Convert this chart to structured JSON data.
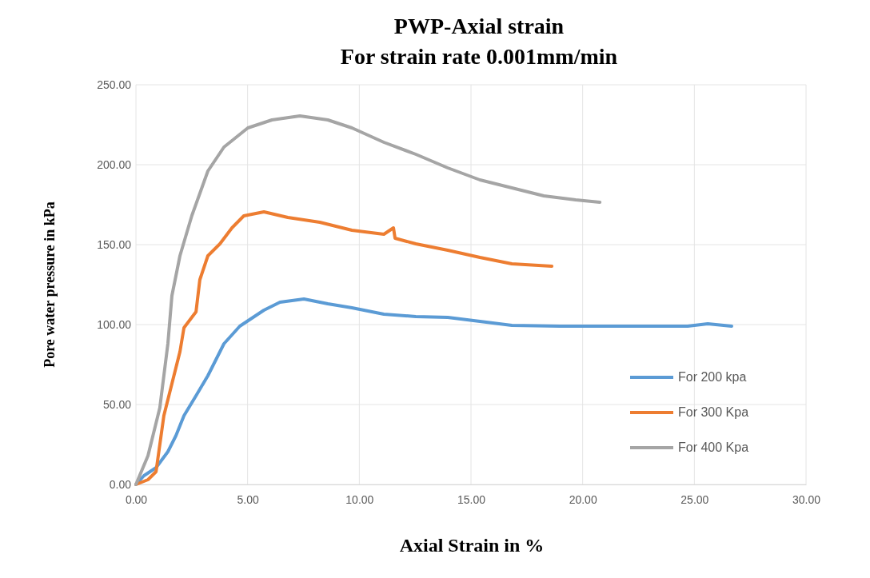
{
  "chart_data": {
    "type": "line",
    "title": "PWP-Axial strain",
    "subtitle": "For strain rate 0.001mm/min",
    "xlabel": "Axial Strain in %",
    "ylabel": "Pore water pressure in kPa",
    "xlim": [
      0,
      30
    ],
    "ylim": [
      0,
      250
    ],
    "xticks": [
      {
        "value": 0,
        "label": "0.00"
      },
      {
        "value": 5,
        "label": "5.00"
      },
      {
        "value": 10,
        "label": "10.00"
      },
      {
        "value": 15,
        "label": "15.00"
      },
      {
        "value": 20,
        "label": "20.00"
      },
      {
        "value": 25,
        "label": "25.00"
      },
      {
        "value": 30,
        "label": "30.00"
      }
    ],
    "yticks": [
      {
        "value": 0,
        "label": "0.00"
      },
      {
        "value": 50,
        "label": "50.00"
      },
      {
        "value": 100,
        "label": "100.00"
      },
      {
        "value": 150,
        "label": "150.00"
      },
      {
        "value": 200,
        "label": "200.00"
      },
      {
        "value": 250,
        "label": "250.00"
      }
    ],
    "grid": true,
    "legend": "right",
    "marker": "none",
    "line_style": "solid",
    "series": [
      {
        "name": "For 200 kpa",
        "color": "#5b9bd5",
        "x": [
          0,
          0.36,
          0.9,
          1.43,
          1.79,
          2.15,
          2.69,
          3.22,
          3.94,
          4.65,
          5.73,
          6.45,
          7.52,
          8.59,
          9.67,
          11.1,
          12.53,
          13.96,
          15.4,
          16.83,
          18.98,
          21.84,
          24.7,
          25.6,
          26.67
        ],
        "values": [
          0,
          5.5,
          10.5,
          20.5,
          30.5,
          43,
          55.5,
          68,
          88,
          99,
          109,
          114,
          116,
          113,
          110.5,
          106.5,
          105,
          104.5,
          102,
          99.5,
          99,
          99,
          99,
          100.5,
          99
        ]
      },
      {
        "name": "For 300 Kpa",
        "color": "#ed7d31",
        "x": [
          0,
          0.54,
          0.9,
          1.25,
          1.61,
          1.97,
          2.15,
          2.69,
          2.86,
          3.22,
          3.76,
          4.3,
          4.83,
          5.73,
          6.8,
          8.23,
          9.67,
          11.1,
          11.53,
          11.6,
          12.53,
          13.96,
          15.4,
          16.83,
          18.62
        ],
        "values": [
          0,
          3,
          8,
          43,
          63,
          83,
          98,
          108,
          128,
          143,
          150.5,
          160.5,
          168,
          170.5,
          167,
          164,
          159,
          156.5,
          160.5,
          154,
          150.5,
          146.5,
          142,
          138,
          136.5
        ]
      },
      {
        "name": "For 400 Kpa",
        "color": "#a5a5a5",
        "x": [
          0,
          0.54,
          1.07,
          1.43,
          1.61,
          1.97,
          2.5,
          3.22,
          3.94,
          5.01,
          6.09,
          7.34,
          8.59,
          9.67,
          11.1,
          12.53,
          13.96,
          15.4,
          16.83,
          18.26,
          19.69,
          20.77
        ],
        "values": [
          0,
          18,
          48,
          88,
          118,
          143,
          168,
          196,
          211,
          223,
          228,
          230.5,
          228,
          223,
          214,
          206.5,
          198,
          190.5,
          185.5,
          180.5,
          178,
          176.5
        ]
      }
    ]
  }
}
